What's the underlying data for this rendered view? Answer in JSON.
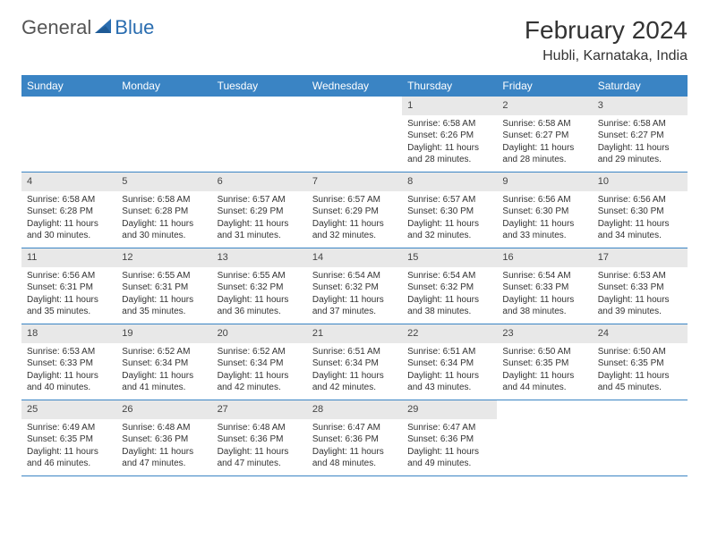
{
  "logo": {
    "text1": "General",
    "text2": "Blue"
  },
  "title": "February 2024",
  "location": "Hubli, Karnataka, India",
  "colors": {
    "header_bg": "#3a84c4",
    "header_text": "#ffffff",
    "daynum_bg": "#e8e8e8",
    "border": "#3a84c4",
    "text": "#333333",
    "logo_gray": "#555555",
    "logo_blue": "#2a6db0"
  },
  "day_names": [
    "Sunday",
    "Monday",
    "Tuesday",
    "Wednesday",
    "Thursday",
    "Friday",
    "Saturday"
  ],
  "weeks": [
    [
      {
        "empty": true
      },
      {
        "empty": true
      },
      {
        "empty": true
      },
      {
        "empty": true
      },
      {
        "day": "1",
        "sunrise": "Sunrise: 6:58 AM",
        "sunset": "Sunset: 6:26 PM",
        "daylight": "Daylight: 11 hours and 28 minutes."
      },
      {
        "day": "2",
        "sunrise": "Sunrise: 6:58 AM",
        "sunset": "Sunset: 6:27 PM",
        "daylight": "Daylight: 11 hours and 28 minutes."
      },
      {
        "day": "3",
        "sunrise": "Sunrise: 6:58 AM",
        "sunset": "Sunset: 6:27 PM",
        "daylight": "Daylight: 11 hours and 29 minutes."
      }
    ],
    [
      {
        "day": "4",
        "sunrise": "Sunrise: 6:58 AM",
        "sunset": "Sunset: 6:28 PM",
        "daylight": "Daylight: 11 hours and 30 minutes."
      },
      {
        "day": "5",
        "sunrise": "Sunrise: 6:58 AM",
        "sunset": "Sunset: 6:28 PM",
        "daylight": "Daylight: 11 hours and 30 minutes."
      },
      {
        "day": "6",
        "sunrise": "Sunrise: 6:57 AM",
        "sunset": "Sunset: 6:29 PM",
        "daylight": "Daylight: 11 hours and 31 minutes."
      },
      {
        "day": "7",
        "sunrise": "Sunrise: 6:57 AM",
        "sunset": "Sunset: 6:29 PM",
        "daylight": "Daylight: 11 hours and 32 minutes."
      },
      {
        "day": "8",
        "sunrise": "Sunrise: 6:57 AM",
        "sunset": "Sunset: 6:30 PM",
        "daylight": "Daylight: 11 hours and 32 minutes."
      },
      {
        "day": "9",
        "sunrise": "Sunrise: 6:56 AM",
        "sunset": "Sunset: 6:30 PM",
        "daylight": "Daylight: 11 hours and 33 minutes."
      },
      {
        "day": "10",
        "sunrise": "Sunrise: 6:56 AM",
        "sunset": "Sunset: 6:30 PM",
        "daylight": "Daylight: 11 hours and 34 minutes."
      }
    ],
    [
      {
        "day": "11",
        "sunrise": "Sunrise: 6:56 AM",
        "sunset": "Sunset: 6:31 PM",
        "daylight": "Daylight: 11 hours and 35 minutes."
      },
      {
        "day": "12",
        "sunrise": "Sunrise: 6:55 AM",
        "sunset": "Sunset: 6:31 PM",
        "daylight": "Daylight: 11 hours and 35 minutes."
      },
      {
        "day": "13",
        "sunrise": "Sunrise: 6:55 AM",
        "sunset": "Sunset: 6:32 PM",
        "daylight": "Daylight: 11 hours and 36 minutes."
      },
      {
        "day": "14",
        "sunrise": "Sunrise: 6:54 AM",
        "sunset": "Sunset: 6:32 PM",
        "daylight": "Daylight: 11 hours and 37 minutes."
      },
      {
        "day": "15",
        "sunrise": "Sunrise: 6:54 AM",
        "sunset": "Sunset: 6:32 PM",
        "daylight": "Daylight: 11 hours and 38 minutes."
      },
      {
        "day": "16",
        "sunrise": "Sunrise: 6:54 AM",
        "sunset": "Sunset: 6:33 PM",
        "daylight": "Daylight: 11 hours and 38 minutes."
      },
      {
        "day": "17",
        "sunrise": "Sunrise: 6:53 AM",
        "sunset": "Sunset: 6:33 PM",
        "daylight": "Daylight: 11 hours and 39 minutes."
      }
    ],
    [
      {
        "day": "18",
        "sunrise": "Sunrise: 6:53 AM",
        "sunset": "Sunset: 6:33 PM",
        "daylight": "Daylight: 11 hours and 40 minutes."
      },
      {
        "day": "19",
        "sunrise": "Sunrise: 6:52 AM",
        "sunset": "Sunset: 6:34 PM",
        "daylight": "Daylight: 11 hours and 41 minutes."
      },
      {
        "day": "20",
        "sunrise": "Sunrise: 6:52 AM",
        "sunset": "Sunset: 6:34 PM",
        "daylight": "Daylight: 11 hours and 42 minutes."
      },
      {
        "day": "21",
        "sunrise": "Sunrise: 6:51 AM",
        "sunset": "Sunset: 6:34 PM",
        "daylight": "Daylight: 11 hours and 42 minutes."
      },
      {
        "day": "22",
        "sunrise": "Sunrise: 6:51 AM",
        "sunset": "Sunset: 6:34 PM",
        "daylight": "Daylight: 11 hours and 43 minutes."
      },
      {
        "day": "23",
        "sunrise": "Sunrise: 6:50 AM",
        "sunset": "Sunset: 6:35 PM",
        "daylight": "Daylight: 11 hours and 44 minutes."
      },
      {
        "day": "24",
        "sunrise": "Sunrise: 6:50 AM",
        "sunset": "Sunset: 6:35 PM",
        "daylight": "Daylight: 11 hours and 45 minutes."
      }
    ],
    [
      {
        "day": "25",
        "sunrise": "Sunrise: 6:49 AM",
        "sunset": "Sunset: 6:35 PM",
        "daylight": "Daylight: 11 hours and 46 minutes."
      },
      {
        "day": "26",
        "sunrise": "Sunrise: 6:48 AM",
        "sunset": "Sunset: 6:36 PM",
        "daylight": "Daylight: 11 hours and 47 minutes."
      },
      {
        "day": "27",
        "sunrise": "Sunrise: 6:48 AM",
        "sunset": "Sunset: 6:36 PM",
        "daylight": "Daylight: 11 hours and 47 minutes."
      },
      {
        "day": "28",
        "sunrise": "Sunrise: 6:47 AM",
        "sunset": "Sunset: 6:36 PM",
        "daylight": "Daylight: 11 hours and 48 minutes."
      },
      {
        "day": "29",
        "sunrise": "Sunrise: 6:47 AM",
        "sunset": "Sunset: 6:36 PM",
        "daylight": "Daylight: 11 hours and 49 minutes."
      },
      {
        "empty": true
      },
      {
        "empty": true
      }
    ]
  ]
}
